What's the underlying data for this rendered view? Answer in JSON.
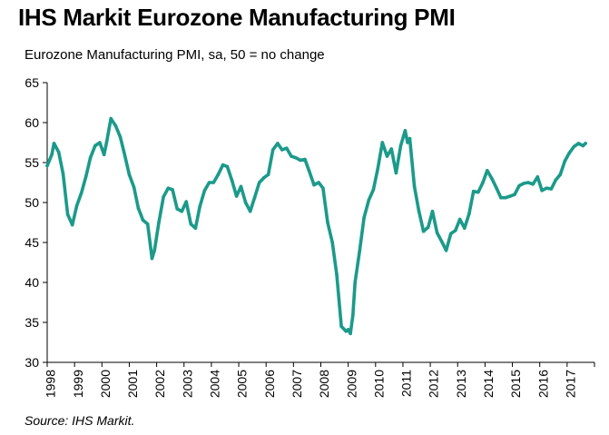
{
  "chart_data": {
    "type": "line",
    "title": "IHS Markit Eurozone Manufacturing PMI",
    "subtitle": "Eurozone Manufacturing PMI, sa, 50 = no change",
    "source": "Source: IHS Markit.",
    "xlabel": "",
    "ylabel": "",
    "ylim": [
      30,
      65
    ],
    "yticks": [
      "65",
      "60",
      "55",
      "50",
      "45",
      "40",
      "35",
      "30"
    ],
    "xlim": [
      1998.0,
      2018.0
    ],
    "xticks": [
      "1998",
      "1999",
      "2000",
      "2001",
      "2002",
      "2003",
      "2004",
      "2005",
      "2006",
      "2007",
      "2008",
      "2009",
      "2010",
      "2011",
      "2012",
      "2013",
      "2014",
      "2015",
      "2016",
      "2017"
    ],
    "grid": false,
    "legend": "none",
    "line_color": "#1b9a8a",
    "series": [
      {
        "x": [
          1998.0,
          1998.17,
          1998.25,
          1998.42,
          1998.58,
          1998.75,
          1998.92,
          1999.08,
          1999.25,
          1999.42,
          1999.58,
          1999.75,
          1999.92,
          2000.08,
          2000.17,
          2000.33,
          2000.5,
          2000.67,
          2000.83,
          2001.0,
          2001.17,
          2001.33,
          2001.5,
          2001.67,
          2001.83,
          2001.92,
          2002.08,
          2002.25,
          2002.42,
          2002.58,
          2002.75,
          2002.92,
          2003.08,
          2003.25,
          2003.42,
          2003.58,
          2003.75,
          2003.92,
          2004.08,
          2004.25,
          2004.42,
          2004.58,
          2004.75,
          2004.92,
          2005.08,
          2005.25,
          2005.42,
          2005.58,
          2005.75,
          2005.92,
          2006.08,
          2006.25,
          2006.42,
          2006.58,
          2006.75,
          2006.92,
          2007.08,
          2007.25,
          2007.42,
          2007.58,
          2007.75,
          2007.92,
          2008.08,
          2008.25,
          2008.42,
          2008.58,
          2008.75,
          2008.92,
          2009.0,
          2009.08,
          2009.17,
          2009.25,
          2009.42,
          2009.58,
          2009.75,
          2009.92,
          2010.08,
          2010.25,
          2010.42,
          2010.58,
          2010.75,
          2010.92,
          2011.08,
          2011.17,
          2011.25,
          2011.42,
          2011.58,
          2011.75,
          2011.92,
          2012.08,
          2012.25,
          2012.42,
          2012.58,
          2012.75,
          2012.92,
          2013.08,
          2013.25,
          2013.42,
          2013.58,
          2013.75,
          2013.92,
          2014.08,
          2014.25,
          2014.42,
          2014.58,
          2014.75,
          2014.92,
          2015.08,
          2015.25,
          2015.42,
          2015.58,
          2015.75,
          2015.92,
          2016.08,
          2016.25,
          2016.42,
          2016.58,
          2016.75,
          2016.92,
          2017.08,
          2017.25,
          2017.42,
          2017.58,
          2017.67
        ],
        "values": [
          54.6,
          56.0,
          57.4,
          56.3,
          53.6,
          48.5,
          47.2,
          49.6,
          51.2,
          53.3,
          55.6,
          57.1,
          57.5,
          56.0,
          57.5,
          60.5,
          59.6,
          58.2,
          56.0,
          53.5,
          51.9,
          49.3,
          47.8,
          47.3,
          43.0,
          44.0,
          47.5,
          50.7,
          51.8,
          51.6,
          49.2,
          48.9,
          50.1,
          47.3,
          46.8,
          49.5,
          51.5,
          52.5,
          52.5,
          53.5,
          54.7,
          54.5,
          52.8,
          50.8,
          52.0,
          50.0,
          48.9,
          50.6,
          52.5,
          53.1,
          53.5,
          56.6,
          57.4,
          56.6,
          56.8,
          55.8,
          55.6,
          55.3,
          55.4,
          53.9,
          52.2,
          52.5,
          51.8,
          47.5,
          45.0,
          41.0,
          34.5,
          33.9,
          34.1,
          33.6,
          35.9,
          40.0,
          44.0,
          48.1,
          50.3,
          51.6,
          54.2,
          57.5,
          55.8,
          56.7,
          53.7,
          57.1,
          59.0,
          57.5,
          58.0,
          52.0,
          49.0,
          46.4,
          46.9,
          48.9,
          46.2,
          45.1,
          44.0,
          46.1,
          46.5,
          47.9,
          46.8,
          48.6,
          51.4,
          51.3,
          52.5,
          54.0,
          53.0,
          51.8,
          50.6,
          50.6,
          50.8,
          51.0,
          52.1,
          52.4,
          52.5,
          52.3,
          53.2,
          51.5,
          51.8,
          51.7,
          52.8,
          53.5,
          55.2,
          56.2,
          57.0,
          57.4,
          57.1,
          57.4
        ]
      }
    ]
  }
}
